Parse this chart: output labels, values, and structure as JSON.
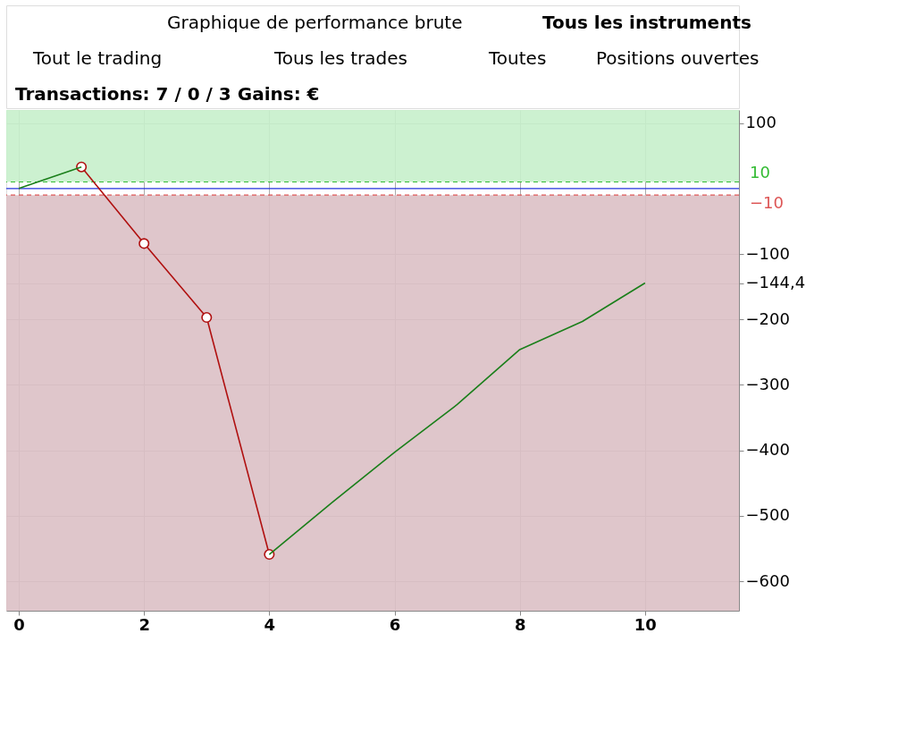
{
  "chart_data": {
    "type": "line",
    "title": "Graphique de performance brute",
    "annotations": [
      "Tous les instruments",
      "Tout le trading",
      "Tous les trades",
      "Toutes",
      "Positions ouvertes",
      "Transactions: 7 / 0 / 3   Gains: €"
    ],
    "x": [
      0,
      1,
      2,
      3,
      4,
      5,
      6,
      7,
      8,
      9,
      10
    ],
    "series": [
      {
        "color": "#1a7f1a",
        "marker": "none",
        "values": [
          0,
          33,
          null,
          null,
          -559,
          -480,
          -403,
          -330,
          -246,
          -203,
          -144.4
        ]
      },
      {
        "color": "#b01010",
        "marker": "circle",
        "values": [
          null,
          33,
          -84,
          -197,
          -559,
          null,
          null,
          null,
          null,
          null,
          null
        ]
      }
    ],
    "xlim": [
      -0.2,
      11.5
    ],
    "xticks": [
      0,
      2,
      4,
      6,
      8,
      10
    ],
    "ylim": [
      -645,
      120
    ],
    "yticks": [
      100,
      {
        "value": -100,
        "label": "−100"
      },
      {
        "value": -144.4,
        "label": "−144,4"
      },
      {
        "value": -200,
        "label": "−200"
      },
      {
        "value": -300,
        "label": "−300"
      },
      {
        "value": -400,
        "label": "−400"
      },
      {
        "value": -500,
        "label": "−500"
      },
      {
        "value": -600,
        "label": "−600"
      }
    ],
    "bands": [
      {
        "axis": "y",
        "from": 10,
        "to": 120,
        "color": "#c6efcb"
      },
      {
        "axis": "y",
        "from": -10,
        "to": -645,
        "color": "#dcc0c5"
      }
    ],
    "ref_lines": [
      {
        "axis": "y",
        "value": 10,
        "label": "10",
        "color": "#33bb33",
        "line_style": "dashed"
      },
      {
        "axis": "y",
        "value": -10,
        "label": "−10",
        "color": "#dd5555",
        "line_style": "dashed"
      },
      {
        "axis": "y",
        "value": 0,
        "color": "#2233dd",
        "line_style": "solid"
      }
    ],
    "grid": true,
    "legend": false
  }
}
